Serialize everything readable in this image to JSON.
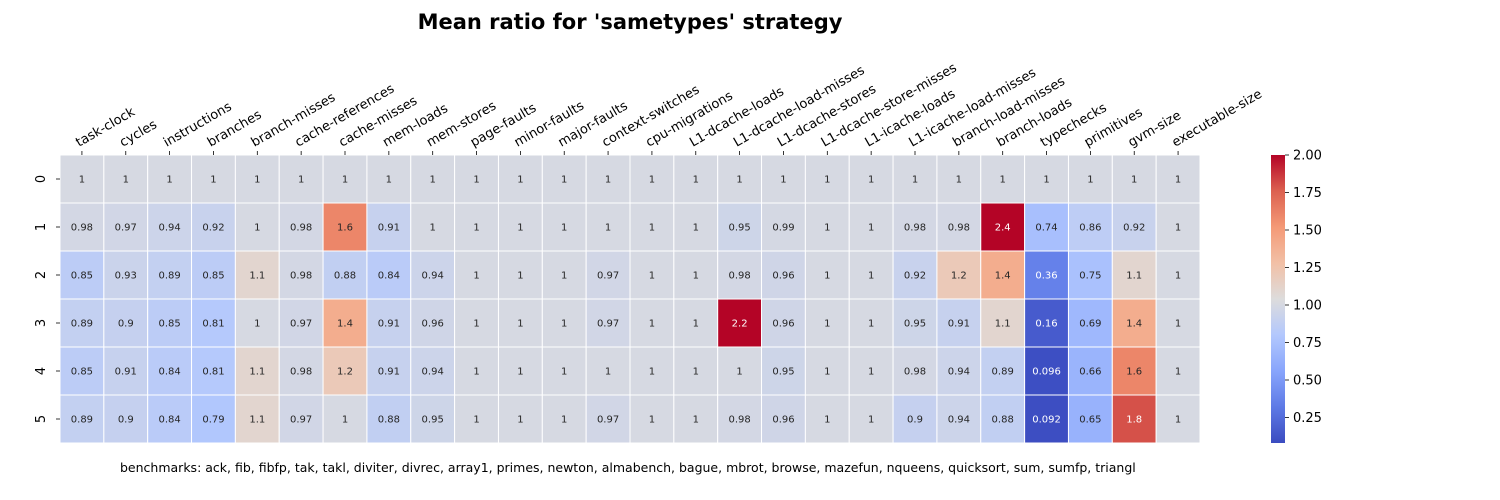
{
  "chart_data": {
    "type": "heatmap",
    "title": "Mean ratio for 'sametypes' strategy",
    "columns": [
      "task-clock",
      "cycles",
      "instructions",
      "branches",
      "branch-misses",
      "cache-references",
      "cache-misses",
      "mem-loads",
      "mem-stores",
      "page-faults",
      "minor-faults",
      "major-faults",
      "context-switches",
      "cpu-migrations",
      "L1-dcache-loads",
      "L1-dcache-load-misses",
      "L1-dcache-stores",
      "L1-dcache-store-misses",
      "L1-icache-loads",
      "L1-icache-load-misses",
      "branch-load-misses",
      "branch-loads",
      "typechecks",
      "primitives",
      "gvm-size",
      "executable-size"
    ],
    "rows": [
      "0",
      "1",
      "2",
      "3",
      "4",
      "5"
    ],
    "values": [
      [
        1,
        1,
        1,
        1,
        1,
        1,
        1,
        1,
        1,
        1,
        1,
        1,
        1,
        1,
        1,
        1,
        1,
        1,
        1,
        1,
        1,
        1,
        1,
        1,
        1,
        1
      ],
      [
        0.98,
        0.97,
        0.94,
        0.92,
        1,
        0.98,
        1.6,
        0.91,
        1,
        1,
        1,
        1,
        1,
        1,
        1,
        0.95,
        0.99,
        1,
        1,
        0.98,
        0.98,
        2.4,
        0.74,
        0.86,
        0.92,
        1
      ],
      [
        0.85,
        0.93,
        0.89,
        0.85,
        1.1,
        0.98,
        0.88,
        0.84,
        0.94,
        1,
        1,
        1,
        0.97,
        1,
        1,
        0.98,
        0.96,
        1,
        1,
        0.92,
        1.2,
        1.4,
        0.36,
        0.75,
        1.1,
        1
      ],
      [
        0.89,
        0.9,
        0.85,
        0.81,
        1,
        0.97,
        1.4,
        0.91,
        0.96,
        1,
        1,
        1,
        0.97,
        1,
        1,
        2.2,
        0.96,
        1,
        1,
        0.95,
        0.91,
        1.1,
        0.16,
        0.69,
        1.4,
        1
      ],
      [
        0.85,
        0.91,
        0.84,
        0.81,
        1.1,
        0.98,
        1.2,
        0.91,
        0.94,
        1,
        1,
        1,
        1,
        1,
        1,
        1,
        0.95,
        1,
        1,
        0.98,
        0.94,
        0.89,
        0.096,
        0.66,
        1.6,
        1
      ],
      [
        0.89,
        0.9,
        0.84,
        0.79,
        1.1,
        0.97,
        1,
        0.88,
        0.95,
        1,
        1,
        1,
        0.97,
        1,
        1,
        0.98,
        0.96,
        1,
        1,
        0.9,
        0.94,
        0.88,
        0.092,
        0.65,
        1.8,
        1
      ]
    ],
    "colormap": "coolwarm",
    "vmin": 0.08,
    "vmax": 2.0,
    "colorbar_ticks": [
      "0.25",
      "0.50",
      "0.75",
      "1.00",
      "1.25",
      "1.50",
      "1.75",
      "2.00"
    ],
    "footnote": "benchmarks: ack, fib, fibfp, tak, takl, diviter, divrec, array1, primes, newton, almabench, bague, mbrot, browse, mazefun, nqueens, quicksort, sum, sumfp, triangl"
  }
}
